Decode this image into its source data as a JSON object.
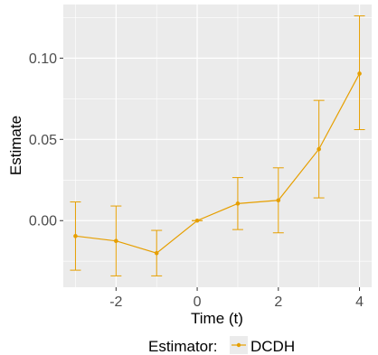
{
  "chart_data": {
    "type": "line",
    "title": "",
    "xlabel": "Time (t)",
    "ylabel": "Estimate",
    "xlim": [
      -3.3,
      4.3
    ],
    "ylim": [
      -0.041,
      0.133
    ],
    "x_ticks": [
      -2,
      0,
      2,
      4
    ],
    "x_tick_labels": [
      "-2",
      "0",
      "2",
      "4"
    ],
    "y_ticks": [
      0.0,
      0.05,
      0.1
    ],
    "y_tick_labels": [
      "0.00",
      "0.05",
      "0.10"
    ],
    "grid": true,
    "legend": {
      "placement": "bottom",
      "title": "Estimator:",
      "entries": [
        "DCDH"
      ]
    },
    "colors": {
      "series": "#E69F00",
      "panel": "#EBEBEB",
      "grid": "#FFFFFF"
    },
    "series": [
      {
        "name": "DCDH",
        "x": [
          -3,
          -2,
          -1,
          0,
          1,
          2,
          3,
          4
        ],
        "y": [
          -0.0095,
          -0.0125,
          -0.02,
          0.0,
          0.0105,
          0.0125,
          0.044,
          0.0905
        ],
        "ci_low": [
          -0.0305,
          -0.034,
          -0.034,
          0.0,
          -0.0055,
          -0.0075,
          0.014,
          0.056
        ],
        "ci_high": [
          0.0115,
          0.009,
          -0.006,
          0.0,
          0.0265,
          0.0325,
          0.074,
          0.126
        ]
      }
    ]
  }
}
